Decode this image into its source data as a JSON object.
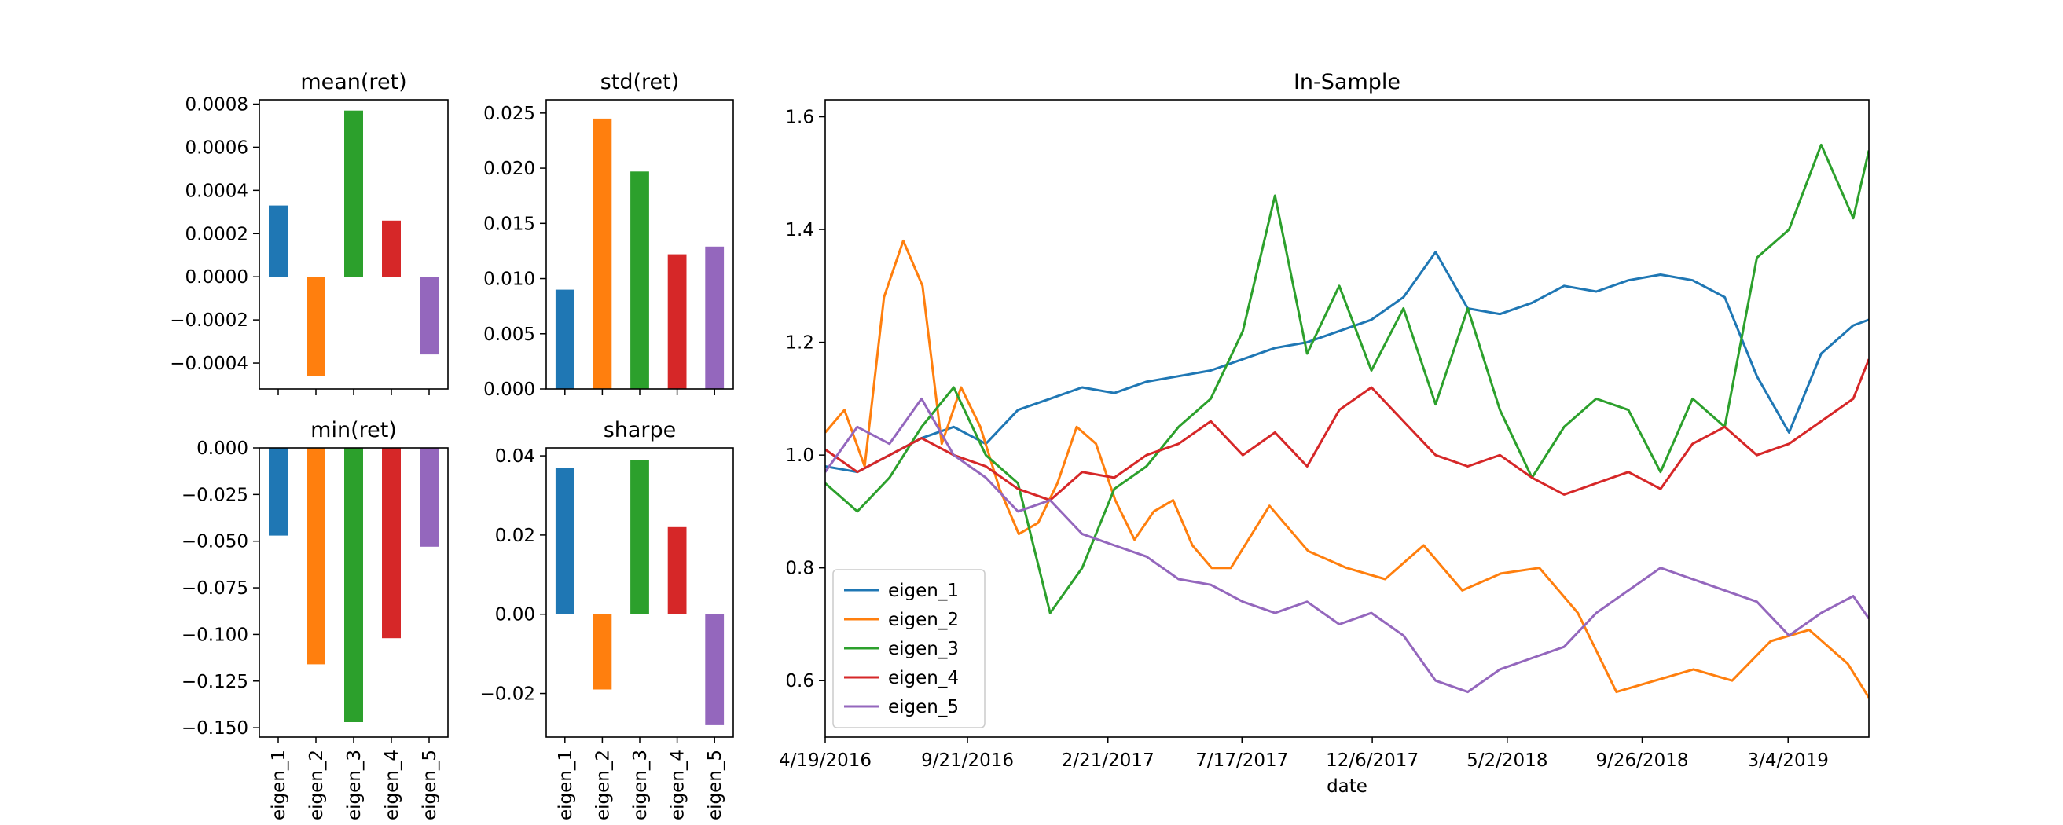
{
  "chart_data": [
    {
      "type": "bar",
      "title": "mean(ret)",
      "categories": [
        "eigen_1",
        "eigen_2",
        "eigen_3",
        "eigen_4",
        "eigen_5"
      ],
      "values": [
        0.00033,
        -0.00046,
        0.00077,
        0.00026,
        -0.00036
      ],
      "ylim": [
        -0.00052,
        0.00082
      ],
      "yticks": [
        -0.0004,
        -0.0002,
        0.0,
        0.0002,
        0.0004,
        0.0006,
        0.0008
      ],
      "ytick_labels": [
        "−0.0004",
        "−0.0002",
        "0.0000",
        "0.0002",
        "0.0004",
        "0.0006",
        "0.0008"
      ],
      "show_xlabels": false
    },
    {
      "type": "bar",
      "title": "std(ret)",
      "categories": [
        "eigen_1",
        "eigen_2",
        "eigen_3",
        "eigen_4",
        "eigen_5"
      ],
      "values": [
        0.009,
        0.0245,
        0.0197,
        0.0122,
        0.0129
      ],
      "ylim": [
        0,
        0.0262
      ],
      "yticks": [
        0.0,
        0.005,
        0.01,
        0.015,
        0.02,
        0.025
      ],
      "ytick_labels": [
        "0.000",
        "0.005",
        "0.010",
        "0.015",
        "0.020",
        "0.025"
      ],
      "show_xlabels": false
    },
    {
      "type": "bar",
      "title": "min(ret)",
      "categories": [
        "eigen_1",
        "eigen_2",
        "eigen_3",
        "eigen_4",
        "eigen_5"
      ],
      "values": [
        -0.047,
        -0.116,
        -0.147,
        -0.102,
        -0.053
      ],
      "ylim": [
        -0.155,
        0
      ],
      "yticks": [
        -0.15,
        -0.125,
        -0.1,
        -0.075,
        -0.05,
        -0.025,
        0.0
      ],
      "ytick_labels": [
        "−0.150",
        "−0.125",
        "−0.100",
        "−0.075",
        "−0.050",
        "−0.025",
        "0.000"
      ],
      "show_xlabels": true
    },
    {
      "type": "bar",
      "title": "sharpe",
      "categories": [
        "eigen_1",
        "eigen_2",
        "eigen_3",
        "eigen_4",
        "eigen_5"
      ],
      "values": [
        0.037,
        -0.019,
        0.039,
        0.022,
        -0.028
      ],
      "ylim": [
        -0.031,
        0.042
      ],
      "yticks": [
        -0.02,
        0.0,
        0.02,
        0.04
      ],
      "ytick_labels": [
        "−0.02",
        "0.00",
        "0.02",
        "0.04"
      ],
      "show_xlabels": true
    },
    {
      "type": "line",
      "title": "In-Sample",
      "xlabel": "date",
      "x_range": [
        "2016-04-19",
        "2019-05-31"
      ],
      "xticks": [
        "2016-04-19",
        "2016-09-21",
        "2017-02-21",
        "2017-07-17",
        "2017-12-06",
        "2018-05-02",
        "2018-09-26",
        "2019-03-04"
      ],
      "xtick_labels": [
        "4/19/2016",
        "9/21/2016",
        "2/21/2017",
        "7/17/2017",
        "12/6/2017",
        "5/2/2018",
        "9/26/2018",
        "3/4/2019"
      ],
      "ylim": [
        0.5,
        1.63
      ],
      "yticks": [
        0.6,
        0.8,
        1.0,
        1.2,
        1.4,
        1.6
      ],
      "ytick_labels": [
        "0.6",
        "0.8",
        "1.0",
        "1.2",
        "1.4",
        "1.6"
      ],
      "legend_position": "lower-left",
      "series": [
        {
          "name": "eigen_1",
          "x": [
            "2016-04-19",
            "2016-05-24",
            "2016-06-28",
            "2016-08-02",
            "2016-09-06",
            "2016-10-11",
            "2016-11-15",
            "2016-12-20",
            "2017-01-24",
            "2017-02-28",
            "2017-04-04",
            "2017-05-09",
            "2017-06-13",
            "2017-07-18",
            "2017-08-22",
            "2017-09-26",
            "2017-10-31",
            "2017-12-05",
            "2018-01-09",
            "2018-02-13",
            "2018-03-20",
            "2018-04-24",
            "2018-05-29",
            "2018-07-03",
            "2018-08-07",
            "2018-09-11",
            "2018-10-16",
            "2018-11-20",
            "2018-12-25",
            "2019-01-29",
            "2019-03-05",
            "2019-04-09",
            "2019-05-14",
            "2019-05-31"
          ],
          "values": [
            0.98,
            0.97,
            1.0,
            1.03,
            1.05,
            1.02,
            1.08,
            1.1,
            1.12,
            1.11,
            1.13,
            1.14,
            1.15,
            1.17,
            1.19,
            1.2,
            1.22,
            1.24,
            1.28,
            1.36,
            1.26,
            1.25,
            1.27,
            1.3,
            1.29,
            1.31,
            1.32,
            1.31,
            1.28,
            1.14,
            1.04,
            1.18,
            1.23,
            1.24
          ]
        },
        {
          "name": "eigen_2",
          "x": [
            "2016-04-19",
            "2016-05-10",
            "2016-06-01",
            "2016-06-22",
            "2016-07-13",
            "2016-08-03",
            "2016-08-24",
            "2016-09-14",
            "2016-10-05",
            "2016-10-26",
            "2016-11-16",
            "2016-12-07",
            "2016-12-28",
            "2017-01-18",
            "2017-02-08",
            "2017-03-01",
            "2017-03-22",
            "2017-04-12",
            "2017-05-03",
            "2017-05-24",
            "2017-06-14",
            "2017-07-05",
            "2017-08-16",
            "2017-09-27",
            "2017-11-08",
            "2017-12-20",
            "2018-01-31",
            "2018-03-14",
            "2018-04-25",
            "2018-06-06",
            "2018-07-18",
            "2018-08-29",
            "2018-10-10",
            "2018-11-21",
            "2019-01-02",
            "2019-02-13",
            "2019-03-27",
            "2019-05-08",
            "2019-05-31"
          ],
          "values": [
            1.04,
            1.08,
            0.98,
            1.28,
            1.38,
            1.3,
            1.02,
            1.12,
            1.05,
            0.94,
            0.86,
            0.88,
            0.95,
            1.05,
            1.02,
            0.92,
            0.85,
            0.9,
            0.92,
            0.84,
            0.8,
            0.8,
            0.91,
            0.83,
            0.8,
            0.78,
            0.84,
            0.76,
            0.79,
            0.8,
            0.72,
            0.58,
            0.6,
            0.62,
            0.6,
            0.67,
            0.69,
            0.63,
            0.57
          ]
        },
        {
          "name": "eigen_3",
          "x": [
            "2016-04-19",
            "2016-05-24",
            "2016-06-28",
            "2016-08-02",
            "2016-09-06",
            "2016-10-11",
            "2016-11-15",
            "2016-12-20",
            "2017-01-24",
            "2017-02-28",
            "2017-04-04",
            "2017-05-09",
            "2017-06-13",
            "2017-07-18",
            "2017-08-22",
            "2017-09-26",
            "2017-10-31",
            "2017-12-05",
            "2018-01-09",
            "2018-02-13",
            "2018-03-20",
            "2018-04-24",
            "2018-05-29",
            "2018-07-03",
            "2018-08-07",
            "2018-09-11",
            "2018-10-16",
            "2018-11-20",
            "2018-12-25",
            "2019-01-29",
            "2019-03-05",
            "2019-04-09",
            "2019-05-14",
            "2019-05-31"
          ],
          "values": [
            0.95,
            0.9,
            0.96,
            1.05,
            1.12,
            1.0,
            0.95,
            0.72,
            0.8,
            0.94,
            0.98,
            1.05,
            1.1,
            1.22,
            1.46,
            1.18,
            1.3,
            1.15,
            1.26,
            1.09,
            1.26,
            1.08,
            0.96,
            1.05,
            1.1,
            1.08,
            0.97,
            1.1,
            1.05,
            1.35,
            1.4,
            1.55,
            1.42,
            1.54
          ]
        },
        {
          "name": "eigen_4",
          "x": [
            "2016-04-19",
            "2016-05-24",
            "2016-06-28",
            "2016-08-02",
            "2016-09-06",
            "2016-10-11",
            "2016-11-15",
            "2016-12-20",
            "2017-01-24",
            "2017-02-28",
            "2017-04-04",
            "2017-05-09",
            "2017-06-13",
            "2017-07-18",
            "2017-08-22",
            "2017-09-26",
            "2017-10-31",
            "2017-12-05",
            "2018-01-09",
            "2018-02-13",
            "2018-03-20",
            "2018-04-24",
            "2018-05-29",
            "2018-07-03",
            "2018-08-07",
            "2018-09-11",
            "2018-10-16",
            "2018-11-20",
            "2018-12-25",
            "2019-01-29",
            "2019-03-05",
            "2019-04-09",
            "2019-05-14",
            "2019-05-31"
          ],
          "values": [
            1.01,
            0.97,
            1.0,
            1.03,
            1.0,
            0.98,
            0.94,
            0.92,
            0.97,
            0.96,
            1.0,
            1.02,
            1.06,
            1.0,
            1.04,
            0.98,
            1.08,
            1.12,
            1.06,
            1.0,
            0.98,
            1.0,
            0.96,
            0.93,
            0.95,
            0.97,
            0.94,
            1.02,
            1.05,
            1.0,
            1.02,
            1.06,
            1.1,
            1.17
          ]
        },
        {
          "name": "eigen_5",
          "x": [
            "2016-04-19",
            "2016-05-24",
            "2016-06-28",
            "2016-08-02",
            "2016-09-06",
            "2016-10-11",
            "2016-11-15",
            "2016-12-20",
            "2017-01-24",
            "2017-02-28",
            "2017-04-04",
            "2017-05-09",
            "2017-06-13",
            "2017-07-18",
            "2017-08-22",
            "2017-09-26",
            "2017-10-31",
            "2017-12-05",
            "2018-01-09",
            "2018-02-13",
            "2018-03-20",
            "2018-04-24",
            "2018-05-29",
            "2018-07-03",
            "2018-08-07",
            "2018-09-11",
            "2018-10-16",
            "2018-11-20",
            "2018-12-25",
            "2019-01-29",
            "2019-03-05",
            "2019-04-09",
            "2019-05-14",
            "2019-05-31"
          ],
          "values": [
            0.97,
            1.05,
            1.02,
            1.1,
            1.0,
            0.96,
            0.9,
            0.92,
            0.86,
            0.84,
            0.82,
            0.78,
            0.77,
            0.74,
            0.72,
            0.74,
            0.7,
            0.72,
            0.68,
            0.6,
            0.58,
            0.62,
            0.64,
            0.66,
            0.72,
            0.76,
            0.8,
            0.78,
            0.76,
            0.74,
            0.68,
            0.72,
            0.75,
            0.71
          ]
        }
      ]
    }
  ],
  "colors": [
    "#1f77b4",
    "#ff7f0e",
    "#2ca02c",
    "#d62728",
    "#9467bd"
  ]
}
